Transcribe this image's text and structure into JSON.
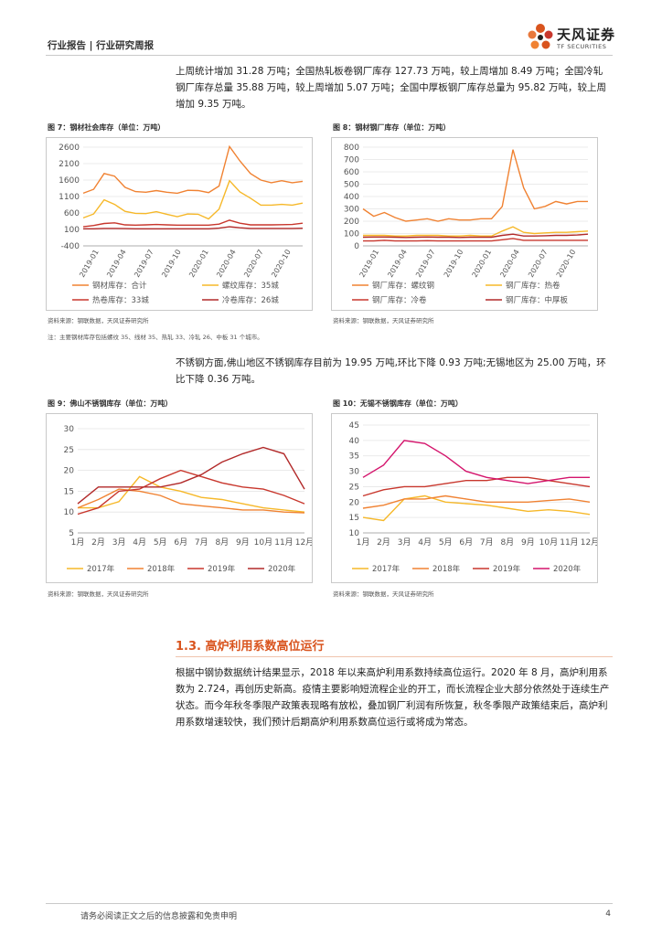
{
  "header": {
    "left": "行业报告 | 行业研究周报",
    "logo_cn": "天风证券",
    "logo_en": "TF SECURITIES"
  },
  "paragraphs": {
    "p1": "上周统计增加 31.28 万吨；全国热轧板卷钢厂库存 127.73 万吨，较上周增加 8.49 万吨；全国冷轧钢厂库存总量 35.88 万吨，较上周增加 5.07 万吨；全国中厚板钢厂库存总量为 95.82 万吨，较上周增加 9.35 万吨。",
    "p2": "不锈钢方面,佛山地区不锈钢库存目前为 19.95 万吨,环比下降 0.93 万吨;无锡地区为 25.00 万吨，环比下降 0.36 万吨。",
    "p3": "根据中钢协数据统计结果显示，2018 年以来高炉利用系数持续高位运行。2020 年 8 月，高炉利用系数为 2.724，再创历史新高。疫情主要影响短流程企业的开工，而长流程企业大部分依然处于连续生产状态。而今年秋冬季限产政策表现略有放松，叠加钢厂利润有所恢复，秋冬季限产政策结束后，高炉利用系数增速较快，我们预计后期高炉利用系数高位运行或将成为常态。"
  },
  "section": {
    "title": "1.3. 高炉利用系数高位运行"
  },
  "captions": {
    "src7": "资料来源：钢联数据，天风证券研究所",
    "note7": "注：主要钢材库存包括螺纹 35、线材 35、热轧 33、冷轧 26、中板 31 个城市。",
    "src8": "资料来源：钢联数据，天风证券研究所",
    "src9": "资料来源：钢联数据，天风证券研究所",
    "src10": "资料来源：钢联数据，天风证券研究所"
  },
  "footer": {
    "disclaimer": "请务必阅读正文之后的信息披露和免责申明",
    "page": "4"
  },
  "colors": {
    "orange": "#f08232",
    "yellow": "#f6b829",
    "red": "#c8372d",
    "darkred": "#b22a2a",
    "pink": "#d4146c"
  },
  "chart_data": [
    {
      "id": "c7",
      "title": "图 7：钢材社会库存（单位：万吨）",
      "type": "line",
      "x_ticks": [
        "2019-01",
        "2019-04",
        "2019-07",
        "2019-10",
        "2020-01",
        "2020-04",
        "2020-07",
        "2020-10"
      ],
      "ylim": [
        -400,
        2600
      ],
      "y_ticks": [
        -400,
        100,
        600,
        1100,
        1600,
        2100,
        2600
      ],
      "y_tick_labels": [
        "-400",
        "100",
        "600",
        "1100",
        "1600",
        "2100",
        "2600"
      ],
      "series": [
        {
          "name": "钢材库存：合计",
          "color": "#f08232",
          "values": [
            1200,
            1320,
            1800,
            1720,
            1380,
            1250,
            1230,
            1280,
            1230,
            1200,
            1290,
            1280,
            1220,
            1420,
            2620,
            2180,
            1800,
            1600,
            1520,
            1580,
            1520,
            1560
          ]
        },
        {
          "name": "螺纹库存：35城",
          "color": "#f6b829",
          "values": [
            450,
            570,
            1000,
            860,
            650,
            590,
            580,
            640,
            560,
            490,
            570,
            560,
            420,
            720,
            1580,
            1240,
            1050,
            840,
            840,
            860,
            840,
            900
          ]
        },
        {
          "name": "热卷库存：33城",
          "color": "#c8372d",
          "values": [
            180,
            220,
            280,
            300,
            240,
            230,
            240,
            250,
            240,
            230,
            230,
            230,
            230,
            260,
            380,
            290,
            240,
            240,
            240,
            245,
            250,
            290
          ]
        },
        {
          "name": "冷卷库存：26城",
          "color": "#b22a2a",
          "values": [
            120,
            120,
            130,
            130,
            125,
            120,
            120,
            120,
            120,
            120,
            120,
            120,
            120,
            140,
            180,
            150,
            130,
            130,
            130,
            130,
            130,
            135
          ]
        }
      ],
      "legend": [
        "钢材库存：合计",
        "螺纹库存：35城",
        "热卷库存：33城",
        "冷卷库存：26城"
      ]
    },
    {
      "id": "c8",
      "title": "图 8：钢材钢厂库存（单位：万吨）",
      "type": "line",
      "x_ticks": [
        "2019-01",
        "2019-04",
        "2019-07",
        "2019-10",
        "2020-01",
        "2020-04",
        "2020-07",
        "2020-10"
      ],
      "ylim": [
        0,
        800
      ],
      "y_ticks": [
        0,
        100,
        200,
        300,
        400,
        500,
        600,
        700,
        800
      ],
      "y_tick_labels": [
        "0",
        "100",
        "200",
        "300",
        "400",
        "500",
        "600",
        "700",
        "800"
      ],
      "series": [
        {
          "name": "钢厂库存：螺纹钢",
          "color": "#f08232",
          "values": [
            300,
            240,
            270,
            230,
            200,
            210,
            220,
            200,
            220,
            210,
            210,
            220,
            220,
            320,
            780,
            470,
            300,
            320,
            360,
            340,
            360,
            360
          ]
        },
        {
          "name": "钢厂库存：热卷",
          "color": "#f6b829",
          "values": [
            85,
            85,
            85,
            80,
            80,
            85,
            85,
            85,
            80,
            80,
            85,
            80,
            80,
            120,
            155,
            110,
            100,
            105,
            110,
            110,
            115,
            120
          ]
        },
        {
          "name": "钢厂库存：冷卷",
          "color": "#c8372d",
          "values": [
            40,
            40,
            45,
            40,
            40,
            40,
            42,
            40,
            40,
            40,
            40,
            40,
            40,
            50,
            60,
            45,
            45,
            45,
            45,
            45,
            45,
            45
          ]
        },
        {
          "name": "钢厂库存：中厚板",
          "color": "#b22a2a",
          "values": [
            70,
            72,
            72,
            70,
            68,
            70,
            72,
            70,
            70,
            68,
            70,
            70,
            70,
            85,
            95,
            80,
            80,
            82,
            85,
            85,
            88,
            95
          ]
        }
      ],
      "legend": [
        "钢厂库存：螺纹钢",
        "钢厂库存：热卷",
        "钢厂库存：冷卷",
        "钢厂库存：中厚板"
      ]
    },
    {
      "id": "c9",
      "title": "图 9：佛山不锈钢库存（单位：万吨）",
      "type": "line",
      "x_ticks": [
        "1月",
        "2月",
        "3月",
        "4月",
        "5月",
        "6月",
        "7月",
        "8月",
        "9月",
        "10月",
        "11月",
        "12月"
      ],
      "ylim": [
        5,
        30
      ],
      "y_ticks": [
        5,
        10,
        15,
        20,
        25,
        30
      ],
      "y_tick_labels": [
        "5",
        "10",
        "15",
        "20",
        "25",
        "30"
      ],
      "series": [
        {
          "name": "2017年",
          "color": "#f6b829",
          "values": [
            11,
            11,
            12.5,
            18.5,
            16,
            15,
            13.5,
            13,
            12,
            11,
            10.5,
            10
          ]
        },
        {
          "name": "2018年",
          "color": "#f08232",
          "values": [
            11,
            13,
            15.5,
            15,
            14,
            12,
            11.5,
            11,
            10.5,
            10.5,
            10,
            9.8
          ]
        },
        {
          "name": "2019年",
          "color": "#c8372d",
          "values": [
            9.5,
            11,
            15,
            15.5,
            18,
            20,
            18.5,
            17,
            16,
            15.5,
            14,
            12
          ]
        },
        {
          "name": "2020年",
          "color": "#b22a2a",
          "values": [
            12,
            16,
            16,
            16,
            16,
            17,
            19,
            22,
            24,
            25.5,
            24,
            15.5
          ]
        }
      ],
      "legend": [
        "2017年",
        "2018年",
        "2019年",
        "2020年"
      ]
    },
    {
      "id": "c10",
      "title": "图 10：无锡不锈钢库存（单位：万吨）",
      "type": "line",
      "x_ticks": [
        "1月",
        "2月",
        "3月",
        "4月",
        "5月",
        "6月",
        "7月",
        "8月",
        "9月",
        "10月",
        "11月",
        "12月"
      ],
      "ylim": [
        10,
        45
      ],
      "y_ticks": [
        10,
        15,
        20,
        25,
        30,
        35,
        40,
        45
      ],
      "y_tick_labels": [
        "10",
        "15",
        "20",
        "25",
        "30",
        "35",
        "40",
        "45"
      ],
      "series": [
        {
          "name": "2017年",
          "color": "#f6b829",
          "values": [
            15,
            14,
            21,
            22,
            20,
            19.5,
            19,
            18,
            17,
            17.5,
            17,
            16
          ]
        },
        {
          "name": "2018年",
          "color": "#f08232",
          "values": [
            18,
            19,
            21,
            21,
            22,
            21,
            20,
            20,
            20,
            20.5,
            21,
            20
          ]
        },
        {
          "name": "2019年",
          "color": "#c8372d",
          "values": [
            22,
            24,
            25,
            25,
            26,
            27,
            27,
            28,
            28,
            27,
            26,
            25
          ]
        },
        {
          "name": "2020年",
          "color": "#d4146c",
          "values": [
            28,
            32,
            40,
            39,
            35,
            30,
            28,
            27,
            26,
            27,
            28,
            28
          ]
        }
      ],
      "legend": [
        "2017年",
        "2018年",
        "2019年",
        "2020年"
      ]
    }
  ]
}
